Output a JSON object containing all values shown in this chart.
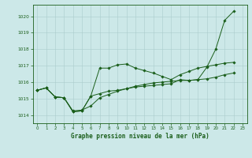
{
  "title": "Graphe pression niveau de la mer (hPa)",
  "bg_color": "#cce8e8",
  "line_color": "#1a5e1a",
  "grid_color": "#aacccc",
  "ylim": [
    1013.5,
    1020.7
  ],
  "xlim": [
    -0.5,
    23.5
  ],
  "yticks": [
    1014,
    1015,
    1016,
    1017,
    1018,
    1019,
    1020
  ],
  "xticks": [
    0,
    1,
    2,
    3,
    4,
    5,
    6,
    7,
    8,
    9,
    10,
    11,
    12,
    13,
    14,
    15,
    16,
    17,
    18,
    19,
    20,
    21,
    22,
    23
  ],
  "xA": [
    0,
    1,
    2,
    3,
    4,
    5,
    6,
    7,
    8,
    9,
    10,
    11,
    12,
    13,
    14,
    15,
    16,
    17,
    18,
    19,
    20,
    21,
    22
  ],
  "yA": [
    1015.5,
    1015.65,
    1015.1,
    1015.05,
    1014.25,
    1014.3,
    1014.55,
    1015.05,
    1015.25,
    1015.45,
    1015.6,
    1015.75,
    1015.85,
    1015.95,
    1016.0,
    1016.05,
    1016.1,
    1016.1,
    1016.15,
    1016.2,
    1016.3,
    1016.45,
    1016.55
  ],
  "xB": [
    0,
    1,
    2,
    3,
    4,
    5,
    6,
    7,
    8,
    9,
    10,
    11,
    12,
    13,
    14,
    15,
    16,
    17,
    18,
    19,
    20,
    21,
    22
  ],
  "yB": [
    1015.5,
    1015.65,
    1015.1,
    1015.05,
    1014.2,
    1014.25,
    1015.15,
    1016.85,
    1016.85,
    1017.05,
    1017.1,
    1016.85,
    1016.7,
    1016.55,
    1016.35,
    1016.15,
    1016.45,
    1016.65,
    1016.85,
    1016.95,
    1017.05,
    1017.15,
    1017.2
  ],
  "xC": [
    0,
    1,
    2,
    3,
    4,
    5,
    6,
    7,
    8,
    9,
    10,
    11,
    12,
    13,
    14,
    15,
    16,
    17,
    18,
    19,
    20,
    21,
    22
  ],
  "yC": [
    1015.5,
    1015.65,
    1015.1,
    1015.05,
    1014.2,
    1014.25,
    1015.15,
    1015.3,
    1015.45,
    1015.5,
    1015.6,
    1015.7,
    1015.75,
    1015.8,
    1015.85,
    1015.9,
    1016.15,
    1016.1,
    1016.15,
    1016.9,
    1018.0,
    1019.75,
    1020.3
  ]
}
